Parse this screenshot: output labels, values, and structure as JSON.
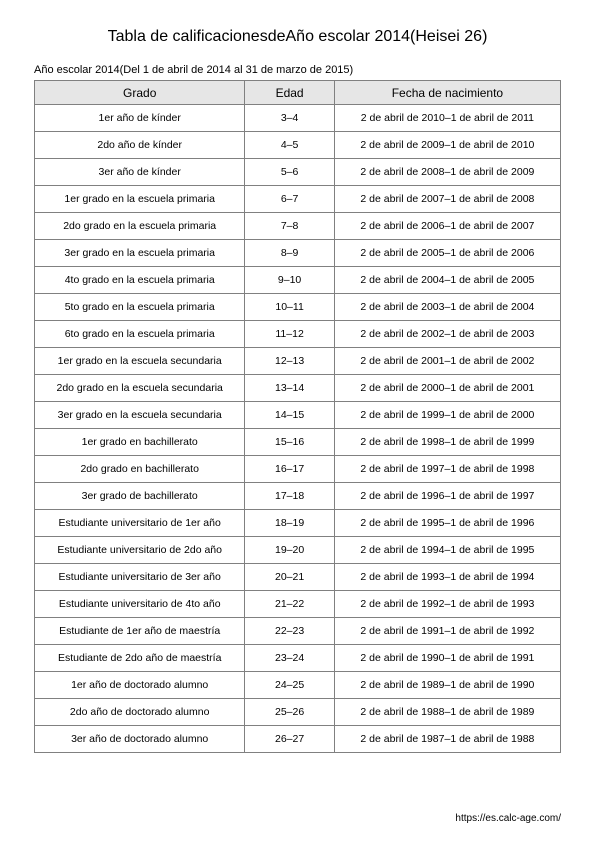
{
  "title": "Tabla de calificacionesdeAño escolar 2014(Heisei 26)",
  "subtitle": "Año escolar 2014(Del 1 de abril de 2014 al 31 de marzo de 2015)",
  "columns": [
    "Grado",
    "Edad",
    "Fecha de nacimiento"
  ],
  "rows": [
    [
      "1er año de kínder",
      "3–4",
      "2 de abril de 2010–1 de abril de 2011"
    ],
    [
      "2do año de kínder",
      "4–5",
      "2 de abril de 2009–1 de abril de 2010"
    ],
    [
      "3er año de kínder",
      "5–6",
      "2 de abril de 2008–1 de abril de 2009"
    ],
    [
      "1er grado en la escuela primaria",
      "6–7",
      "2 de abril de 2007–1 de abril de 2008"
    ],
    [
      "2do grado en la escuela primaria",
      "7–8",
      "2 de abril de 2006–1 de abril de 2007"
    ],
    [
      "3er grado en la escuela primaria",
      "8–9",
      "2 de abril de 2005–1 de abril de 2006"
    ],
    [
      "4to grado en la escuela primaria",
      "9–10",
      "2 de abril de 2004–1 de abril de 2005"
    ],
    [
      "5to grado en la escuela primaria",
      "10–11",
      "2 de abril de 2003–1 de abril de 2004"
    ],
    [
      "6to grado en la escuela primaria",
      "11–12",
      "2 de abril de 2002–1 de abril de 2003"
    ],
    [
      "1er grado en la escuela secundaria",
      "12–13",
      "2 de abril de 2001–1 de abril de 2002"
    ],
    [
      "2do grado en la escuela secundaria",
      "13–14",
      "2 de abril de 2000–1 de abril de 2001"
    ],
    [
      "3er grado en la escuela secundaria",
      "14–15",
      "2 de abril de 1999–1 de abril de 2000"
    ],
    [
      "1er grado en bachillerato",
      "15–16",
      "2 de abril de 1998–1 de abril de 1999"
    ],
    [
      "2do grado en bachillerato",
      "16–17",
      "2 de abril de 1997–1 de abril de 1998"
    ],
    [
      "3er grado de bachillerato",
      "17–18",
      "2 de abril de 1996–1 de abril de 1997"
    ],
    [
      "Estudiante universitario de 1er año",
      "18–19",
      "2 de abril de 1995–1 de abril de 1996"
    ],
    [
      "Estudiante universitario de 2do año",
      "19–20",
      "2 de abril de 1994–1 de abril de 1995"
    ],
    [
      "Estudiante universitario de 3er año",
      "20–21",
      "2 de abril de 1993–1 de abril de 1994"
    ],
    [
      "Estudiante universitario de 4to año",
      "21–22",
      "2 de abril de 1992–1 de abril de 1993"
    ],
    [
      "Estudiante de 1er año de maestría",
      "22–23",
      "2 de abril de 1991–1 de abril de 1992"
    ],
    [
      "Estudiante de 2do año de maestría",
      "23–24",
      "2 de abril de 1990–1 de abril de 1991"
    ],
    [
      "1er año de doctorado alumno",
      "24–25",
      "2 de abril de 1989–1 de abril de 1990"
    ],
    [
      "2do año de doctorado alumno",
      "25–26",
      "2 de abril de 1988–1 de abril de 1989"
    ],
    [
      "3er año de doctorado alumno",
      "26–27",
      "2 de abril de 1987–1 de abril de 1988"
    ]
  ],
  "footer": "https://es.calc-age.com/"
}
